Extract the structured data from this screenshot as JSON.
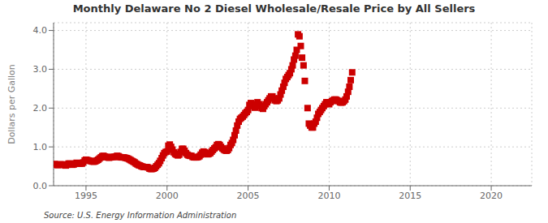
{
  "chart_data": {
    "type": "scatter",
    "title": "Monthly Delaware No 2 Diesel Wholesale/Resale Price by All Sellers",
    "ylabel": "Dollars per Gallon",
    "annotations": [
      "Source: U.S. Energy Information Administration"
    ],
    "color": "#cc0000",
    "marker": "square",
    "grid": true,
    "xlim": [
      1993.0,
      2022.5
    ],
    "ylim": [
      0.0,
      4.2
    ],
    "xticks": [
      1995,
      2000,
      2005,
      2010,
      2015,
      2020
    ],
    "yticks": [
      {
        "value": 0.0,
        "label": "0.0"
      },
      {
        "value": 1.0,
        "label": "1.0"
      },
      {
        "value": 2.0,
        "label": "2.0"
      },
      {
        "value": 3.0,
        "label": "3.0"
      },
      {
        "value": 4.0,
        "label": "4.0"
      }
    ],
    "x": [
      1993.08,
      1993.17,
      1993.25,
      1993.33,
      1993.42,
      1993.5,
      1993.58,
      1993.67,
      1993.75,
      1993.83,
      1993.92,
      1994.0,
      1994.08,
      1994.17,
      1994.25,
      1994.33,
      1994.42,
      1994.5,
      1994.58,
      1994.67,
      1994.75,
      1994.83,
      1994.92,
      1995.0,
      1995.08,
      1995.17,
      1995.25,
      1995.33,
      1995.42,
      1995.5,
      1995.58,
      1995.67,
      1995.75,
      1995.83,
      1995.92,
      1996.0,
      1996.08,
      1996.17,
      1996.25,
      1996.33,
      1996.42,
      1996.5,
      1996.58,
      1996.67,
      1996.75,
      1996.83,
      1996.92,
      1997.0,
      1997.08,
      1997.17,
      1997.25,
      1997.33,
      1997.42,
      1997.5,
      1997.58,
      1997.67,
      1997.75,
      1997.83,
      1997.92,
      1998.0,
      1998.08,
      1998.17,
      1998.25,
      1998.33,
      1998.42,
      1998.5,
      1998.58,
      1998.67,
      1998.75,
      1998.83,
      1998.92,
      1999.0,
      1999.08,
      1999.17,
      1999.25,
      1999.33,
      1999.42,
      1999.5,
      1999.58,
      1999.67,
      1999.75,
      1999.83,
      1999.92,
      2000.0,
      2000.08,
      2000.17,
      2000.25,
      2000.33,
      2000.42,
      2000.5,
      2000.58,
      2000.67,
      2000.75,
      2000.83,
      2000.92,
      2001.0,
      2001.08,
      2001.17,
      2001.25,
      2001.33,
      2001.42,
      2001.5,
      2001.58,
      2001.67,
      2001.75,
      2001.83,
      2001.92,
      2002.0,
      2002.08,
      2002.17,
      2002.25,
      2002.33,
      2002.42,
      2002.5,
      2002.58,
      2002.67,
      2002.75,
      2002.83,
      2002.92,
      2003.0,
      2003.08,
      2003.17,
      2003.25,
      2003.33,
      2003.42,
      2003.5,
      2003.58,
      2003.67,
      2003.75,
      2003.83,
      2003.92,
      2004.0,
      2004.08,
      2004.17,
      2004.25,
      2004.33,
      2004.42,
      2004.5,
      2004.58,
      2004.67,
      2004.75,
      2004.83,
      2004.92,
      2005.0,
      2005.08,
      2005.17,
      2005.25,
      2005.33,
      2005.42,
      2005.5,
      2005.58,
      2005.67,
      2005.75,
      2005.83,
      2005.92,
      2006.0,
      2006.08,
      2006.17,
      2006.25,
      2006.33,
      2006.42,
      2006.5,
      2006.58,
      2006.67,
      2006.75,
      2006.83,
      2006.92,
      2007.0,
      2007.08,
      2007.17,
      2007.25,
      2007.33,
      2007.42,
      2007.5,
      2007.58,
      2007.67,
      2007.75,
      2007.83,
      2007.92,
      2008.0,
      2008.08,
      2008.17,
      2008.25,
      2008.33,
      2008.42,
      2008.5,
      2008.67,
      2008.75,
      2008.83,
      2008.92,
      2009.0,
      2009.08,
      2009.17,
      2009.25,
      2009.33,
      2009.42,
      2009.5,
      2009.58,
      2009.67,
      2009.75,
      2009.83,
      2009.92,
      2010.0,
      2010.08,
      2010.17,
      2010.25,
      2010.33,
      2010.42,
      2010.5,
      2010.58,
      2010.67,
      2010.75,
      2010.83,
      2010.92,
      2011.0,
      2011.08,
      2011.17,
      2011.25,
      2011.33,
      2011.42
    ],
    "values": [
      0.56,
      0.54,
      0.53,
      0.54,
      0.55,
      0.55,
      0.54,
      0.53,
      0.52,
      0.54,
      0.57,
      0.57,
      0.55,
      0.54,
      0.55,
      0.57,
      0.59,
      0.58,
      0.57,
      0.57,
      0.57,
      0.6,
      0.65,
      0.67,
      0.66,
      0.65,
      0.64,
      0.63,
      0.62,
      0.62,
      0.63,
      0.65,
      0.67,
      0.7,
      0.73,
      0.76,
      0.77,
      0.75,
      0.74,
      0.73,
      0.72,
      0.73,
      0.74,
      0.74,
      0.74,
      0.75,
      0.77,
      0.76,
      0.74,
      0.73,
      0.73,
      0.73,
      0.72,
      0.71,
      0.7,
      0.68,
      0.66,
      0.64,
      0.62,
      0.6,
      0.57,
      0.55,
      0.53,
      0.52,
      0.5,
      0.49,
      0.48,
      0.48,
      0.48,
      0.47,
      0.44,
      0.43,
      0.43,
      0.44,
      0.46,
      0.5,
      0.54,
      0.58,
      0.64,
      0.71,
      0.78,
      0.84,
      0.87,
      0.88,
      1.03,
      1.06,
      1.0,
      0.93,
      0.86,
      0.82,
      0.8,
      0.78,
      0.8,
      0.87,
      0.95,
      0.95,
      0.9,
      0.84,
      0.8,
      0.78,
      0.77,
      0.77,
      0.74,
      0.73,
      0.73,
      0.73,
      0.74,
      0.76,
      0.8,
      0.85,
      0.88,
      0.86,
      0.82,
      0.81,
      0.82,
      0.84,
      0.88,
      0.92,
      0.96,
      0.99,
      1.05,
      1.07,
      1.05,
      1.0,
      0.96,
      0.93,
      0.91,
      0.9,
      0.92,
      0.97,
      1.05,
      1.1,
      1.18,
      1.3,
      1.42,
      1.55,
      1.65,
      1.72,
      1.75,
      1.78,
      1.82,
      1.87,
      1.9,
      1.95,
      2.08,
      2.13,
      2.1,
      2.05,
      2.01,
      2.07,
      2.15,
      2.1,
      2.05,
      2.0,
      1.98,
      2.05,
      2.1,
      2.15,
      2.2,
      2.25,
      2.3,
      2.3,
      2.25,
      2.2,
      2.18,
      2.2,
      2.25,
      2.35,
      2.45,
      2.55,
      2.65,
      2.75,
      2.8,
      2.85,
      2.9,
      3.0,
      3.1,
      3.25,
      3.35,
      3.5,
      3.9,
      3.85,
      3.6,
      3.3,
      3.1,
      2.7,
      2.0,
      1.6,
      1.55,
      1.5,
      1.5,
      1.6,
      1.65,
      1.75,
      1.85,
      1.9,
      1.95,
      2.0,
      2.05,
      2.1,
      2.15,
      2.15,
      2.1,
      2.15,
      2.18,
      2.2,
      2.22,
      2.22,
      2.2,
      2.18,
      2.15,
      2.14,
      2.15,
      2.18,
      2.22,
      2.3,
      2.42,
      2.55,
      2.72,
      2.92
    ]
  }
}
